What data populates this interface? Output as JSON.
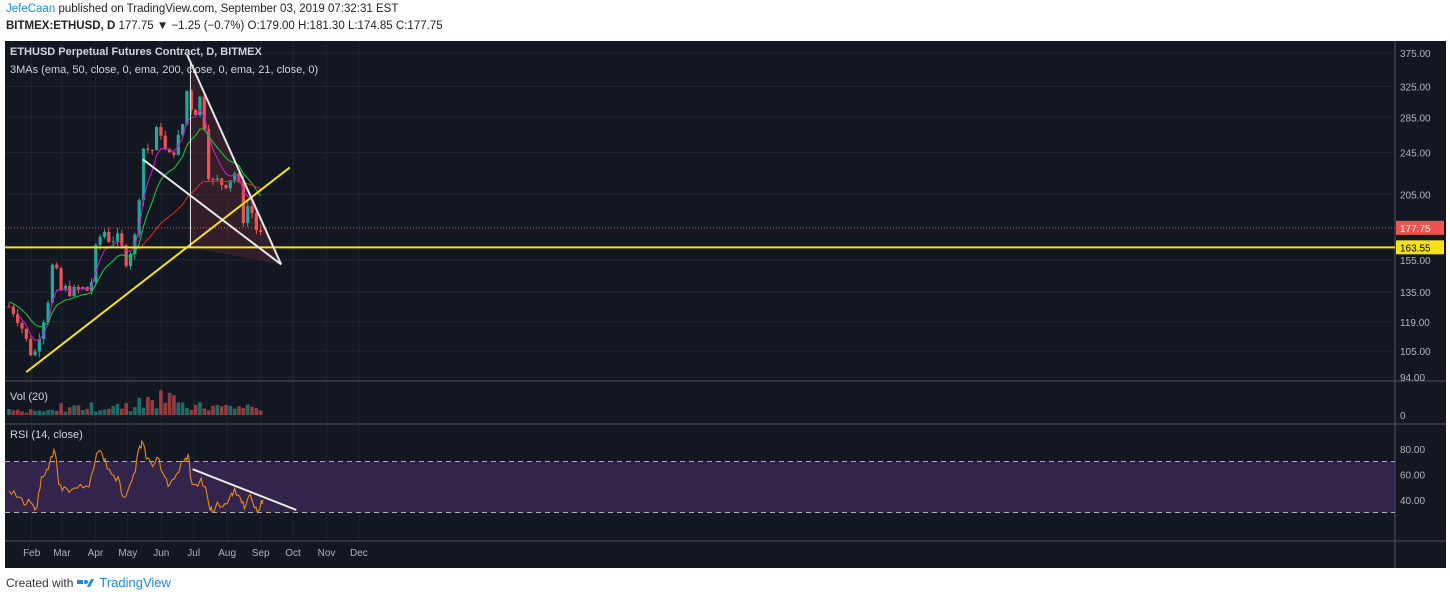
{
  "header": {
    "author": "JefeCaan",
    "published": "published on TradingView.com, September 03, 2019 07:32:31 EST",
    "symbol": "BITMEX:ETHUSD, D",
    "last": "177.75",
    "change": "▼ −1.25 (−0.7%)",
    "o_label": "O:",
    "o": "179.00",
    "h_label": "H:",
    "h": "181.30",
    "l_label": "L:",
    "l": "174.85",
    "c_label": "C:",
    "c": "177.75"
  },
  "legend": {
    "title": "ETHUSD Perpetual Futures Contract, D, BITMEX",
    "mas": "3MAs (ema, 50, close, 0, ema, 200, close, 0, ema, 21, close, 0)"
  },
  "footer": {
    "created": "Created with",
    "brand": "TradingView"
  },
  "colors": {
    "background": "#131722",
    "up": "#26a69a",
    "down": "#ef5350",
    "ema21": "#c11fc7",
    "ema50": "#1fbf3a",
    "ema200": "#d12a2a",
    "trend_yellow": "#f5e21a",
    "trend_white": "#e8e8e8",
    "rsi_line": "#e8891c",
    "rsi_band": "#4a2d6e"
  },
  "chart_data": [
    {
      "type": "candlestick",
      "title": "ETHUSD Perpetual Futures Contract, D, BITMEX",
      "x_ticks": [
        "Feb",
        "Mar",
        "Apr",
        "May",
        "Jun",
        "Jul",
        "Aug",
        "Sep",
        "Oct",
        "Nov",
        "Dec"
      ],
      "y_ticks": [
        375.0,
        325.0,
        285.0,
        245.0,
        205.0,
        155.0,
        135.0,
        119.0,
        105.0,
        94.0
      ],
      "y_scale": "log",
      "last_price_label": "177.75",
      "support_label": "163.55",
      "support_level": 163.55,
      "close_series": [
        {
          "date": "2019-01-11",
          "v": 127
        },
        {
          "date": "2019-01-16",
          "v": 124
        },
        {
          "date": "2019-01-21",
          "v": 119
        },
        {
          "date": "2019-01-26",
          "v": 112
        },
        {
          "date": "2019-01-30",
          "v": 104
        },
        {
          "date": "2019-02-03",
          "v": 106
        },
        {
          "date": "2019-02-06",
          "v": 102
        },
        {
          "date": "2019-02-09",
          "v": 118
        },
        {
          "date": "2019-02-12",
          "v": 121
        },
        {
          "date": "2019-02-15",
          "v": 123
        },
        {
          "date": "2019-02-18",
          "v": 145
        },
        {
          "date": "2019-02-20",
          "v": 150
        },
        {
          "date": "2019-02-23",
          "v": 159
        },
        {
          "date": "2019-02-25",
          "v": 138
        },
        {
          "date": "2019-02-28",
          "v": 136
        },
        {
          "date": "2019-03-05",
          "v": 137
        },
        {
          "date": "2019-03-10",
          "v": 135
        },
        {
          "date": "2019-03-15",
          "v": 136
        },
        {
          "date": "2019-03-20",
          "v": 137
        },
        {
          "date": "2019-03-25",
          "v": 136
        },
        {
          "date": "2019-03-28",
          "v": 140
        },
        {
          "date": "2019-04-02",
          "v": 165
        },
        {
          "date": "2019-04-05",
          "v": 170
        },
        {
          "date": "2019-04-08",
          "v": 178
        },
        {
          "date": "2019-04-11",
          "v": 172
        },
        {
          "date": "2019-04-15",
          "v": 168
        },
        {
          "date": "2019-04-20",
          "v": 172
        },
        {
          "date": "2019-04-25",
          "v": 164
        },
        {
          "date": "2019-04-29",
          "v": 154
        },
        {
          "date": "2019-05-04",
          "v": 162
        },
        {
          "date": "2019-05-08",
          "v": 172
        },
        {
          "date": "2019-05-11",
          "v": 196
        },
        {
          "date": "2019-05-14",
          "v": 250
        },
        {
          "date": "2019-05-18",
          "v": 250
        },
        {
          "date": "2019-05-23",
          "v": 245
        },
        {
          "date": "2019-05-28",
          "v": 270
        },
        {
          "date": "2019-06-01",
          "v": 268
        },
        {
          "date": "2019-06-05",
          "v": 245
        },
        {
          "date": "2019-06-10",
          "v": 240
        },
        {
          "date": "2019-06-15",
          "v": 255
        },
        {
          "date": "2019-06-20",
          "v": 270
        },
        {
          "date": "2019-06-24",
          "v": 310
        },
        {
          "date": "2019-06-26",
          "v": 335
        },
        {
          "date": "2019-06-28",
          "v": 300
        },
        {
          "date": "2019-07-02",
          "v": 290
        },
        {
          "date": "2019-07-07",
          "v": 310
        },
        {
          "date": "2019-07-11",
          "v": 275
        },
        {
          "date": "2019-07-14",
          "v": 240
        },
        {
          "date": "2019-07-16",
          "v": 205
        },
        {
          "date": "2019-07-20",
          "v": 220
        },
        {
          "date": "2019-07-25",
          "v": 215
        },
        {
          "date": "2019-07-31",
          "v": 215
        },
        {
          "date": "2019-08-04",
          "v": 220
        },
        {
          "date": "2019-08-08",
          "v": 225
        },
        {
          "date": "2019-08-13",
          "v": 210
        },
        {
          "date": "2019-08-16",
          "v": 185
        },
        {
          "date": "2019-08-20",
          "v": 195
        },
        {
          "date": "2019-08-24",
          "v": 190
        },
        {
          "date": "2019-08-27",
          "v": 185
        },
        {
          "date": "2019-08-29",
          "v": 170
        },
        {
          "date": "2019-09-01",
          "v": 172
        },
        {
          "date": "2019-09-03",
          "v": 177.75
        }
      ],
      "moving_averages": [
        {
          "name": "ema 21"
        },
        {
          "name": "ema 50"
        },
        {
          "name": "ema 200"
        }
      ]
    },
    {
      "type": "bar",
      "title": "Vol (20)",
      "y_ticks": [
        "0"
      ]
    },
    {
      "type": "line",
      "title": "RSI (14, close)",
      "y_ticks": [
        "80.00",
        "60.00",
        "40.00"
      ],
      "band": [
        30,
        70
      ],
      "series": [
        {
          "values": [
            {
              "date": "2019-01-11",
              "v": 47
            },
            {
              "date": "2019-01-18",
              "v": 42
            },
            {
              "date": "2019-01-25",
              "v": 36
            },
            {
              "date": "2019-01-31",
              "v": 38
            },
            {
              "date": "2019-02-06",
              "v": 34
            },
            {
              "date": "2019-02-10",
              "v": 58
            },
            {
              "date": "2019-02-15",
              "v": 64
            },
            {
              "date": "2019-02-19",
              "v": 74
            },
            {
              "date": "2019-02-23",
              "v": 76
            },
            {
              "date": "2019-02-26",
              "v": 52
            },
            {
              "date": "2019-03-03",
              "v": 50
            },
            {
              "date": "2019-03-10",
              "v": 48
            },
            {
              "date": "2019-03-18",
              "v": 52
            },
            {
              "date": "2019-03-26",
              "v": 50
            },
            {
              "date": "2019-04-02",
              "v": 76
            },
            {
              "date": "2019-04-06",
              "v": 78
            },
            {
              "date": "2019-04-10",
              "v": 72
            },
            {
              "date": "2019-04-16",
              "v": 60
            },
            {
              "date": "2019-04-22",
              "v": 58
            },
            {
              "date": "2019-04-27",
              "v": 42
            },
            {
              "date": "2019-05-03",
              "v": 52
            },
            {
              "date": "2019-05-08",
              "v": 62
            },
            {
              "date": "2019-05-12",
              "v": 82
            },
            {
              "date": "2019-05-14",
              "v": 86
            },
            {
              "date": "2019-05-18",
              "v": 72
            },
            {
              "date": "2019-05-24",
              "v": 66
            },
            {
              "date": "2019-05-30",
              "v": 72
            },
            {
              "date": "2019-06-04",
              "v": 58
            },
            {
              "date": "2019-06-09",
              "v": 52
            },
            {
              "date": "2019-06-15",
              "v": 60
            },
            {
              "date": "2019-06-22",
              "v": 70
            },
            {
              "date": "2019-06-26",
              "v": 76
            },
            {
              "date": "2019-06-28",
              "v": 58
            },
            {
              "date": "2019-07-03",
              "v": 52
            },
            {
              "date": "2019-07-08",
              "v": 57
            },
            {
              "date": "2019-07-12",
              "v": 50
            },
            {
              "date": "2019-07-16",
              "v": 32
            },
            {
              "date": "2019-07-18",
              "v": 31
            },
            {
              "date": "2019-07-23",
              "v": 38
            },
            {
              "date": "2019-07-30",
              "v": 37
            },
            {
              "date": "2019-08-05",
              "v": 45
            },
            {
              "date": "2019-08-08",
              "v": 49
            },
            {
              "date": "2019-08-13",
              "v": 42
            },
            {
              "date": "2019-08-17",
              "v": 33
            },
            {
              "date": "2019-08-21",
              "v": 43
            },
            {
              "date": "2019-08-25",
              "v": 37
            },
            {
              "date": "2019-08-29",
              "v": 30
            },
            {
              "date": "2019-09-01",
              "v": 36
            },
            {
              "date": "2019-09-03",
              "v": 40
            }
          ]
        }
      ]
    }
  ]
}
